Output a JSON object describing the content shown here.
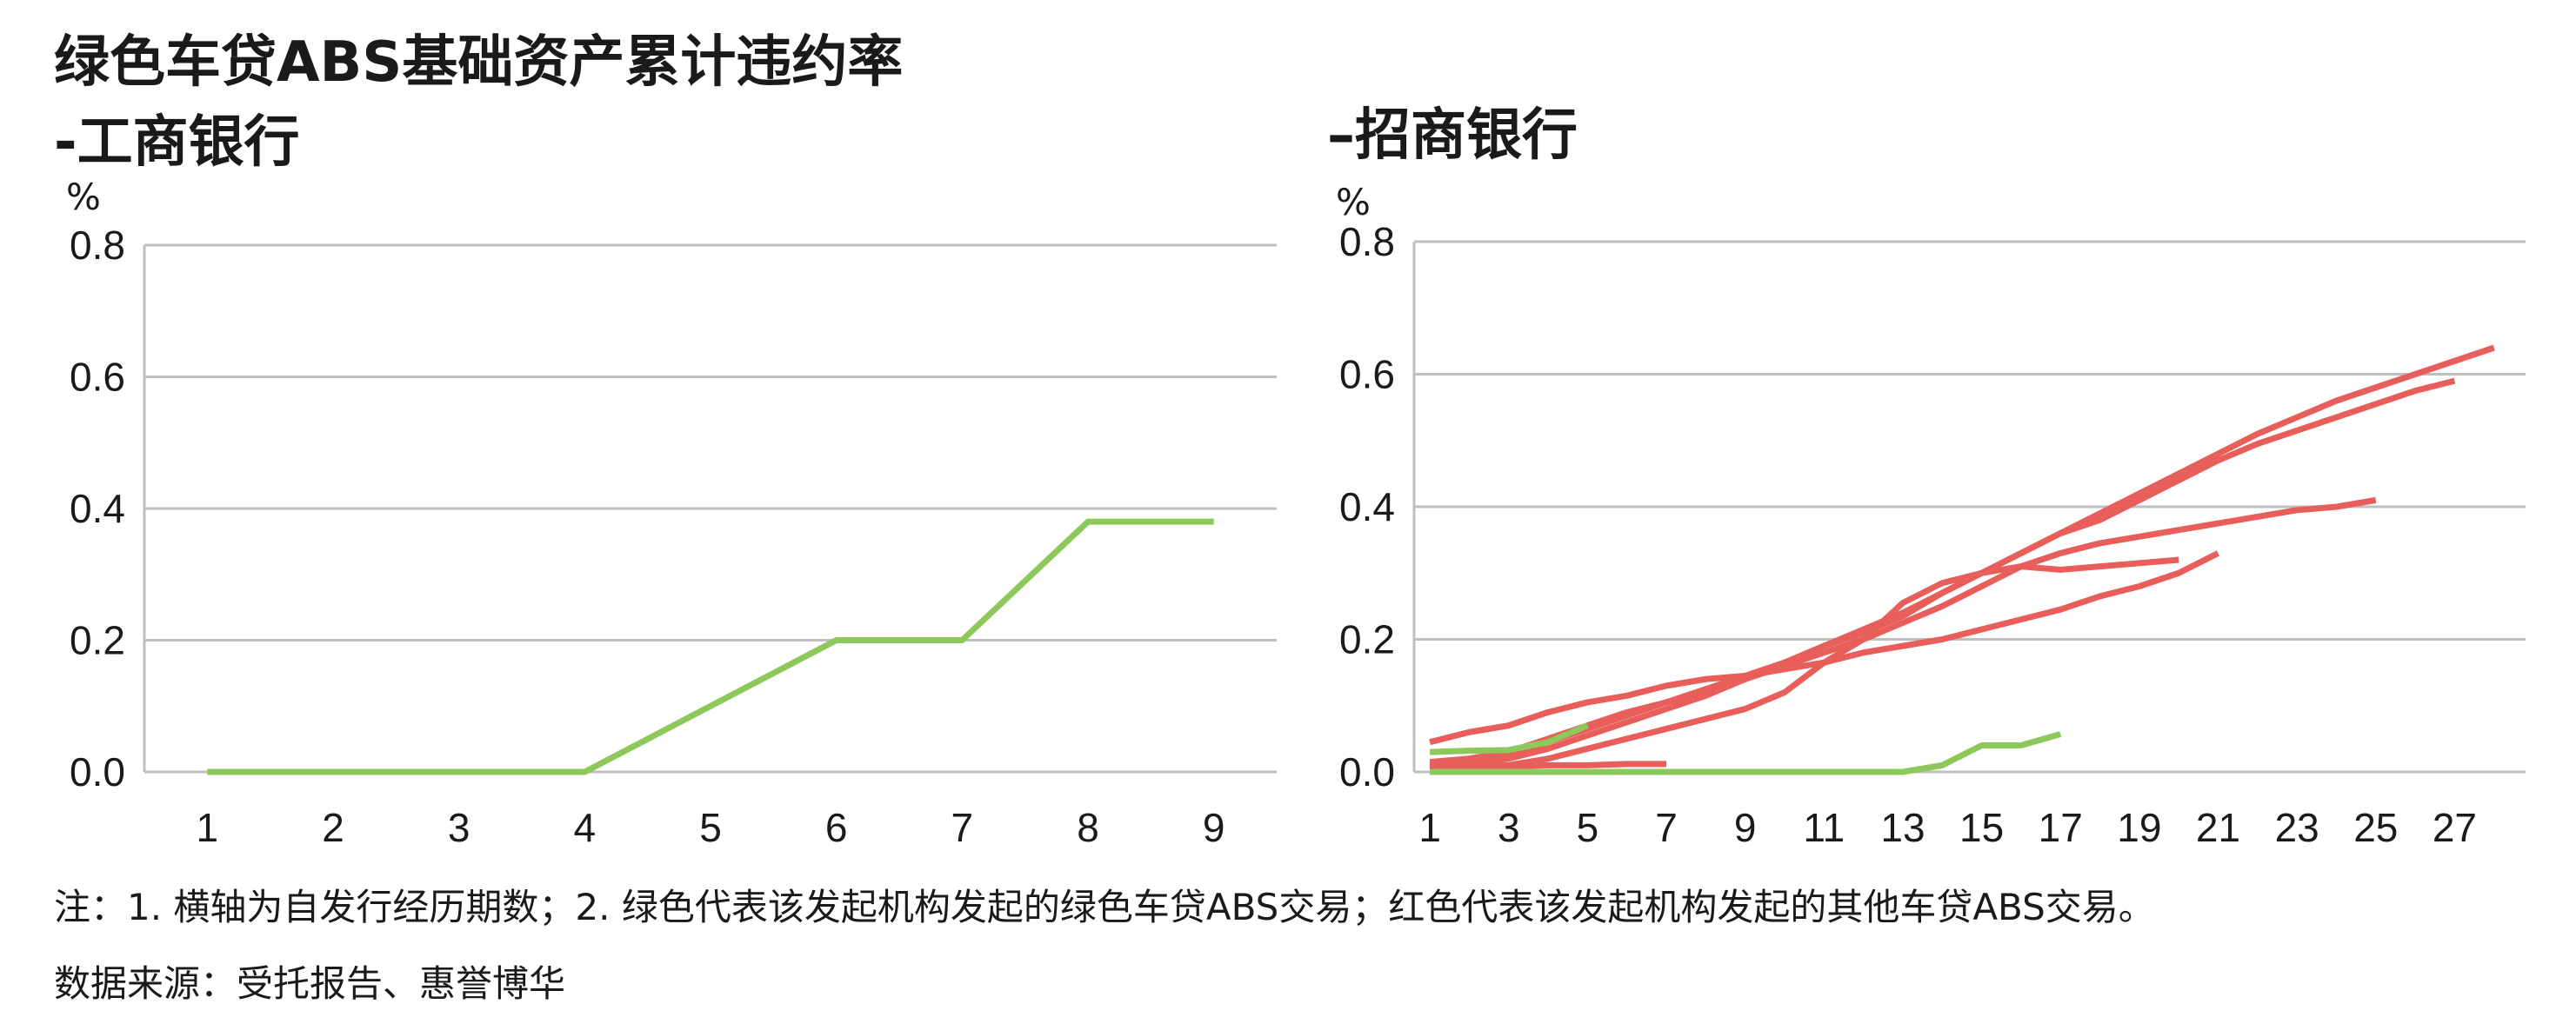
{
  "titles": {
    "left_line1": "绿色车贷ABS基础资产累计违约率",
    "left_line2": "-工商银行",
    "right": "–招商银行"
  },
  "notes": {
    "line1": "注：1. 横轴为自发行经历期数；2. 绿色代表该发起机构发起的绿色车贷ABS交易；红色代表该发起机构发起的其他车贷ABS交易。",
    "line2": "数据来源：受托报告、惠誉博华"
  },
  "colors": {
    "green": "#8cc85a",
    "red": "#e85e5a",
    "grid": "#bfbfbf"
  },
  "chart_data": [
    {
      "type": "line",
      "title": "绿色车贷ABS基础资产累计违约率 -工商银行",
      "ylabel": "%",
      "ylim": [
        0,
        0.8
      ],
      "y_ticks": [
        "0.0",
        "0.2",
        "0.4",
        "0.6",
        "0.8"
      ],
      "x_ticks": [
        "1",
        "2",
        "3",
        "4",
        "5",
        "6",
        "7",
        "8",
        "9"
      ],
      "xlim": [
        0.5,
        9.5
      ],
      "grid": true,
      "series": [
        {
          "color": "green",
          "x": [
            1,
            2,
            3,
            4,
            5,
            6,
            7,
            8,
            9
          ],
          "values": [
            0,
            0,
            0,
            0,
            0.1,
            0.2,
            0.2,
            0.38,
            0.38
          ]
        }
      ]
    },
    {
      "type": "line",
      "title": "–招商银行",
      "ylabel": "%",
      "ylim": [
        0,
        0.8
      ],
      "y_ticks": [
        "0.0",
        "0.2",
        "0.4",
        "0.6",
        "0.8"
      ],
      "x_ticks": [
        "1",
        "3",
        "5",
        "7",
        "9",
        "11",
        "13",
        "15",
        "17",
        "19",
        "21",
        "23",
        "25",
        "27"
      ],
      "xlim": [
        0.6,
        28.8
      ],
      "grid": true,
      "series": [
        {
          "color": "red",
          "x": [
            1,
            2,
            3,
            4,
            5,
            6,
            7,
            8,
            9,
            10,
            11,
            12,
            13,
            14,
            15,
            16,
            17,
            18,
            19,
            20,
            21,
            22,
            23,
            24,
            25,
            26,
            27,
            28
          ],
          "values": [
            0.015,
            0.02,
            0.03,
            0.045,
            0.065,
            0.085,
            0.105,
            0.125,
            0.145,
            0.165,
            0.19,
            0.215,
            0.24,
            0.27,
            0.3,
            0.33,
            0.36,
            0.39,
            0.42,
            0.45,
            0.48,
            0.51,
            0.535,
            0.56,
            0.58,
            0.6,
            0.62,
            0.64
          ]
        },
        {
          "color": "red",
          "x": [
            1,
            2,
            3,
            4,
            5,
            6,
            7,
            8,
            9,
            10,
            11,
            12,
            13,
            14,
            15,
            16,
            17,
            18,
            19,
            20,
            21,
            22,
            23,
            24,
            25,
            26,
            27
          ],
          "values": [
            0.01,
            0.012,
            0.02,
            0.035,
            0.055,
            0.075,
            0.095,
            0.115,
            0.14,
            0.165,
            0.19,
            0.21,
            0.235,
            0.27,
            0.3,
            0.33,
            0.36,
            0.38,
            0.41,
            0.44,
            0.47,
            0.495,
            0.515,
            0.535,
            0.555,
            0.575,
            0.59
          ]
        },
        {
          "color": "red",
          "x": [
            1,
            2,
            3,
            4,
            5,
            6,
            7,
            8,
            9,
            10,
            11,
            12,
            13,
            14,
            15,
            16,
            17,
            18,
            19,
            20,
            21,
            22,
            23,
            24,
            25
          ],
          "values": [
            0.01,
            0.015,
            0.025,
            0.045,
            0.07,
            0.09,
            0.105,
            0.12,
            0.14,
            0.16,
            0.18,
            0.2,
            0.225,
            0.25,
            0.28,
            0.31,
            0.33,
            0.345,
            0.355,
            0.365,
            0.375,
            0.385,
            0.395,
            0.4,
            0.41
          ]
        },
        {
          "color": "red",
          "x": [
            1,
            2,
            3,
            4,
            5,
            6,
            7,
            8,
            9,
            10,
            11,
            12,
            13,
            14,
            15,
            16,
            17,
            18,
            19,
            20,
            21
          ],
          "values": [
            0.045,
            0.06,
            0.07,
            0.09,
            0.105,
            0.115,
            0.13,
            0.14,
            0.145,
            0.155,
            0.165,
            0.18,
            0.19,
            0.2,
            0.215,
            0.23,
            0.245,
            0.265,
            0.28,
            0.3,
            0.33
          ]
        },
        {
          "color": "red",
          "x": [
            1,
            2,
            3,
            4,
            5,
            6,
            7,
            8,
            9,
            10,
            11,
            12,
            13,
            14,
            15,
            16,
            17,
            18,
            19,
            20
          ],
          "values": [
            0.005,
            0.008,
            0.01,
            0.02,
            0.035,
            0.05,
            0.065,
            0.08,
            0.095,
            0.12,
            0.165,
            0.2,
            0.255,
            0.285,
            0.3,
            0.31,
            0.305,
            0.31,
            0.315,
            0.32
          ]
        },
        {
          "color": "red",
          "x": [
            1,
            2,
            3,
            4,
            5
          ],
          "values": [
            0.01,
            0.015,
            0.03,
            0.05,
            0.07
          ]
        },
        {
          "color": "red",
          "x": [
            1,
            2,
            3,
            4,
            5,
            6,
            7
          ],
          "values": [
            0.005,
            0.008,
            0.008,
            0.01,
            0.01,
            0.012,
            0.012
          ]
        },
        {
          "color": "green",
          "x": [
            1,
            2,
            3,
            4,
            5
          ],
          "values": [
            0.03,
            0.032,
            0.033,
            0.045,
            0.07
          ]
        },
        {
          "color": "green",
          "x": [
            1,
            2,
            3,
            4,
            5,
            6,
            7,
            8,
            9,
            10,
            11,
            12,
            13,
            14,
            15,
            16,
            17
          ],
          "values": [
            0,
            0,
            0,
            0,
            0,
            0,
            0,
            0,
            0,
            0,
            0,
            0,
            0,
            0.01,
            0.04,
            0.04,
            0.057
          ]
        }
      ]
    }
  ]
}
